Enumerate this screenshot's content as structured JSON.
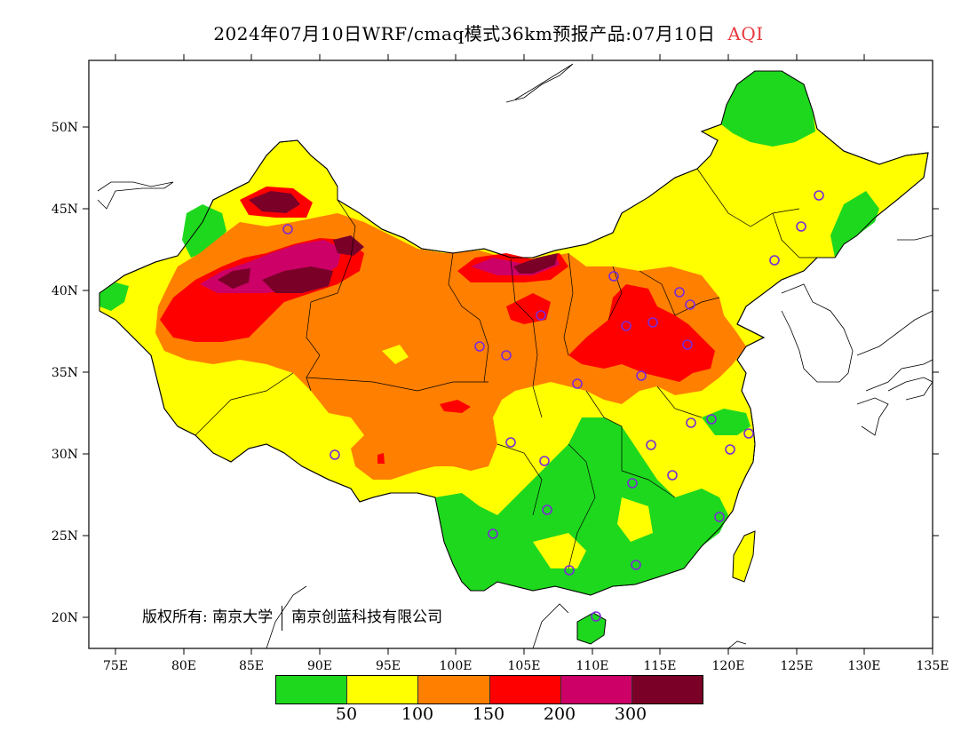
{
  "title": {
    "main": "2024年07月10日WRF/cmaq模式36km预报产品:07月10日",
    "variable": "AQI"
  },
  "axes": {
    "lat_labels": [
      "50N",
      "45N",
      "40N",
      "35N",
      "30N",
      "25N",
      "20N"
    ],
    "lon_labels": [
      "75E",
      "80E",
      "85E",
      "90E",
      "95E",
      "100E",
      "105E",
      "110E",
      "115E",
      "120E",
      "125E",
      "130E",
      "135E"
    ]
  },
  "copyright": {
    "prefix": "版权所有:",
    "org1": "南京大学",
    "org2": "南京创蓝科技有限公司"
  },
  "legend": {
    "colors": [
      "#1ed81e",
      "#ffff00",
      "#ff7f00",
      "#ff0000",
      "#cc0066",
      "#7a0028"
    ],
    "labels": [
      "50",
      "100",
      "150",
      "200",
      "300"
    ]
  },
  "colors": {
    "ocean": "#ffffff",
    "station_marker": "#7b2bd6",
    "aqi_label": "#e8383d"
  }
}
